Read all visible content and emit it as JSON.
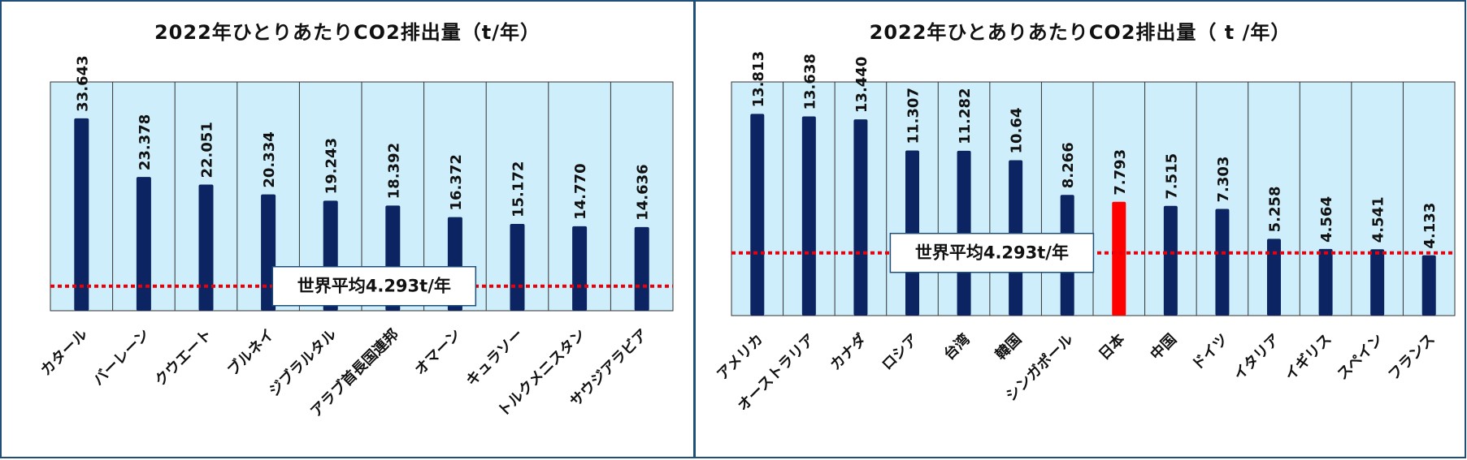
{
  "chart_data": [
    {
      "type": "bar",
      "title": "2022年ひとりあたりCO2排出量（t/年）",
      "categories": [
        "カタール",
        "バーレーン",
        "クウエート",
        "ブルネイ",
        "ジブラルタル",
        "アラブ首長国連邦",
        "オマーン",
        "キュラソー",
        "トルクメニスタン",
        "サウジアラビア"
      ],
      "values": [
        33.643,
        23.378,
        22.051,
        20.334,
        19.243,
        18.392,
        16.372,
        15.172,
        14.77,
        14.636
      ],
      "value_labels": [
        "33.643",
        "23.378",
        "22.051",
        "20.334",
        "19.243",
        "18.392",
        "16.372",
        "15.172",
        "14.770",
        "14.636"
      ],
      "color": "#0c2461",
      "ylim": [
        0,
        40
      ],
      "reference_line": {
        "value": 4.293,
        "label": "世界平均4.293t/年",
        "color": "#e8000b"
      }
    },
    {
      "type": "bar",
      "title": "2022年ひとありあたりCO2排出量（ t /年）",
      "categories": [
        "アメリカ",
        "オーストラリア",
        "カナダ",
        "ロシア",
        "台湾",
        "韓国",
        "シンガポール",
        "日本",
        "中国",
        "ドイツ",
        "イタリア",
        "イギリス",
        "スペイン",
        "フランス"
      ],
      "values": [
        13.813,
        13.638,
        13.44,
        11.307,
        11.282,
        10.64,
        8.266,
        7.793,
        7.515,
        7.303,
        5.258,
        4.564,
        4.541,
        4.133
      ],
      "value_labels": [
        "13.813",
        "13.638",
        "13.440",
        "11.307",
        "11.282",
        "10.64",
        "8.266",
        "7.793",
        "7.515",
        "7.303",
        "5.258",
        "4.564",
        "4.541",
        "4.133"
      ],
      "colors": [
        "#0c2461",
        "#0c2461",
        "#0c2461",
        "#0c2461",
        "#0c2461",
        "#0c2461",
        "#0c2461",
        "#ff0000",
        "#0c2461",
        "#0c2461",
        "#0c2461",
        "#0c2461",
        "#0c2461",
        "#0c2461"
      ],
      "ylim": [
        0,
        16
      ],
      "reference_line": {
        "value": 4.293,
        "label": "世界平均4.293t/年",
        "color": "#e8000b"
      }
    }
  ]
}
